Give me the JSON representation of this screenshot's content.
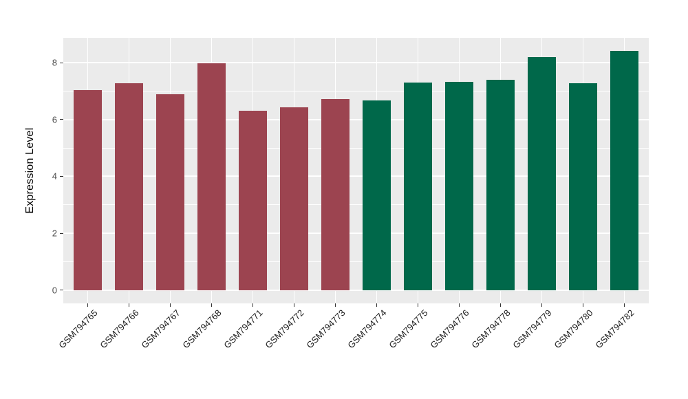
{
  "chart_data": {
    "type": "bar",
    "title": "",
    "xlabel": "",
    "ylabel": "Expression Level",
    "categories": [
      "GSM794765",
      "GSM794766",
      "GSM794767",
      "GSM794768",
      "GSM794771",
      "GSM794772",
      "GSM794773",
      "GSM794774",
      "GSM794775",
      "GSM794776",
      "GSM794778",
      "GSM794779",
      "GSM794780",
      "GSM794782"
    ],
    "values": [
      7.03,
      7.28,
      6.9,
      7.98,
      6.3,
      6.43,
      6.71,
      6.68,
      7.3,
      7.33,
      7.4,
      8.2,
      7.27,
      8.42
    ],
    "bar_colors": [
      "#9C4450",
      "#9C4450",
      "#9C4450",
      "#9C4450",
      "#9C4450",
      "#9C4450",
      "#9C4450",
      "#00684A",
      "#00684A",
      "#00684A",
      "#00684A",
      "#00684A",
      "#00684A",
      "#00684A"
    ],
    "yticks": [
      0,
      2,
      4,
      6,
      8
    ],
    "yticks_minor": [
      1,
      3,
      5,
      7
    ],
    "ylim": [
      0,
      8.84
    ],
    "grid": true,
    "legend": false,
    "style": {
      "panel_bg": "#EBEBEB",
      "grid_color": "#FFFFFF",
      "tick_mark_color": "#333333",
      "tick_label_color": "#4D4D4D",
      "axis_title_color": "#000000",
      "figure_bg": "#FFFFFF"
    }
  }
}
